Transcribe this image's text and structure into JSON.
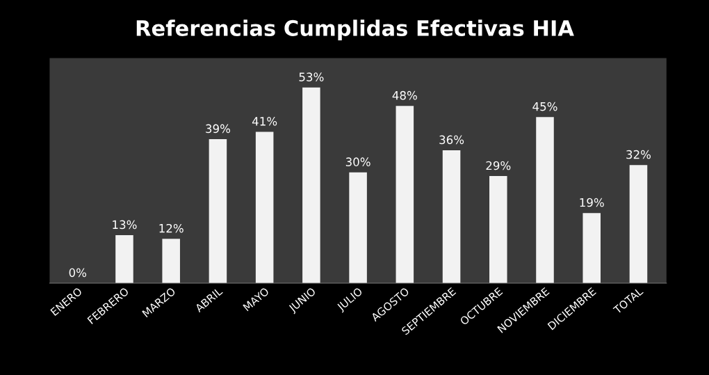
{
  "chart_data": {
    "type": "bar",
    "title": "Referencias Cumplidas Efectivas HIA",
    "categories": [
      "ENERO",
      "FEBRERO",
      "MARZO",
      "ABRIL",
      "MAYO",
      "JUNIO",
      "JULIO",
      "AGOSTO",
      "SEPTIEMBRE",
      "OCTUBRE",
      "NOVIEMBRE",
      "DICIEMBRE",
      "TOTAL"
    ],
    "values": [
      0,
      13,
      12,
      39,
      41,
      53,
      30,
      48,
      36,
      29,
      45,
      19,
      32
    ],
    "value_labels": [
      "0%",
      "13%",
      "12%",
      "39%",
      "41%",
      "53%",
      "30%",
      "48%",
      "36%",
      "29%",
      "45%",
      "19%",
      "32%"
    ],
    "color": "#f2f2f2",
    "grid": false,
    "legend": false
  }
}
